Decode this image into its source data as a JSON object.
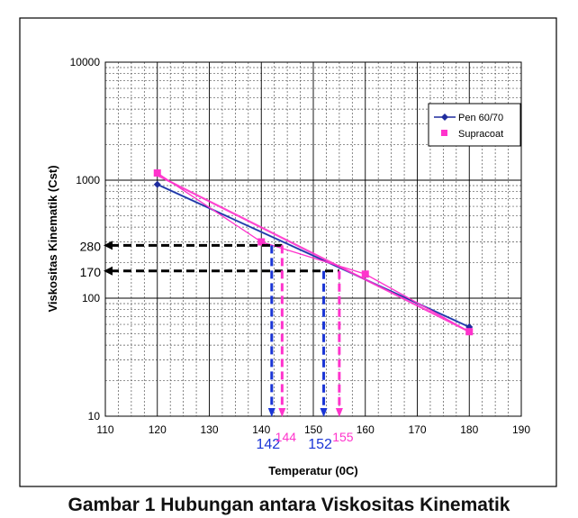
{
  "chart_data": {
    "type": "line",
    "x_scale": "linear",
    "y_scale": "log",
    "xlabel": "Temperatur (0C)",
    "ylabel": "Viskositas Kinematik (Cst)",
    "xlim": [
      110,
      190
    ],
    "ylim": [
      10,
      10000
    ],
    "x_ticks": [
      "110",
      "120",
      "130",
      "140",
      "150",
      "160",
      "170",
      "180",
      "190"
    ],
    "y_ticks": [
      "10",
      "100",
      "1000",
      "10000"
    ],
    "grid": true,
    "legend_position": "top-right",
    "series": [
      {
        "name": "Pen 60/70",
        "color": "#1f2c9e",
        "marker": "diamond",
        "points": [
          [
            120,
            920
          ],
          [
            180,
            57
          ]
        ],
        "fit_line": {
          "from": [
            120,
            920
          ],
          "to": [
            180,
            57
          ],
          "color": "#5b8ee0"
        }
      },
      {
        "name": "Supracoat",
        "color": "#ff33cc",
        "marker": "square",
        "points": [
          [
            120,
            1150
          ],
          [
            140,
            300
          ],
          [
            160,
            160
          ],
          [
            180,
            52
          ]
        ],
        "fit_line": {
          "from": [
            120,
            1100
          ],
          "to": [
            180,
            52
          ],
          "color": "#ff33cc"
        }
      }
    ],
    "annotations": {
      "horizontal": [
        {
          "label": "280",
          "y": 280,
          "x_end": 144
        },
        {
          "label": "170",
          "y": 170,
          "x_end": 155
        }
      ],
      "vertical": [
        {
          "label": "142",
          "x": 142,
          "y_start": 280,
          "color": "#1a35d6"
        },
        {
          "label": "144",
          "x": 144,
          "y_start": 280,
          "color": "#ff33cc"
        },
        {
          "label": "152",
          "x": 152,
          "y_start": 170,
          "color": "#1a35d6"
        },
        {
          "label": "155",
          "x": 155,
          "y_start": 170,
          "color": "#ff33cc"
        }
      ]
    }
  },
  "caption": "Gambar 1 Hubungan antara Viskositas Kinematik"
}
